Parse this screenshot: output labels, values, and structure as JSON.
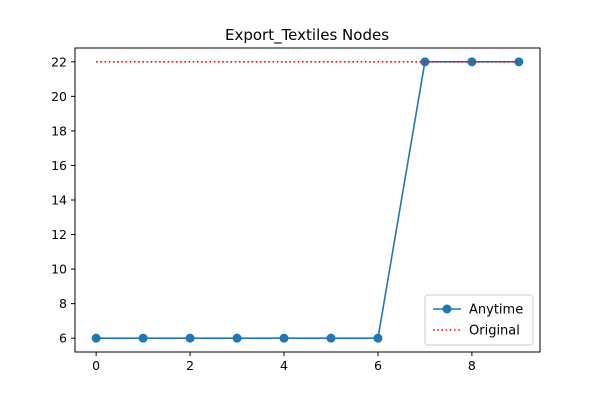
{
  "chart_data": {
    "type": "line",
    "title": "Export_Textiles Nodes",
    "xlabel": "",
    "ylabel": "",
    "xlim": [
      -0.45,
      9.45
    ],
    "ylim": [
      5.2,
      22.8
    ],
    "xticks": [
      0,
      2,
      4,
      6,
      8
    ],
    "yticks": [
      6,
      8,
      10,
      12,
      14,
      16,
      18,
      20,
      22
    ],
    "grid": false,
    "legend_position": "lower-right",
    "series": [
      {
        "name": "Anytime",
        "x": [
          0,
          1,
          2,
          3,
          4,
          5,
          6,
          7,
          8,
          9
        ],
        "y": [
          6,
          6,
          6,
          6,
          6,
          6,
          6,
          22,
          22,
          22
        ],
        "color": "#1f77b4",
        "style": "solid",
        "marker": "circle"
      },
      {
        "name": "Original",
        "x": [
          0,
          9
        ],
        "y": [
          22,
          22
        ],
        "color": "#ff0000",
        "style": "dotted",
        "marker": "none"
      }
    ]
  }
}
